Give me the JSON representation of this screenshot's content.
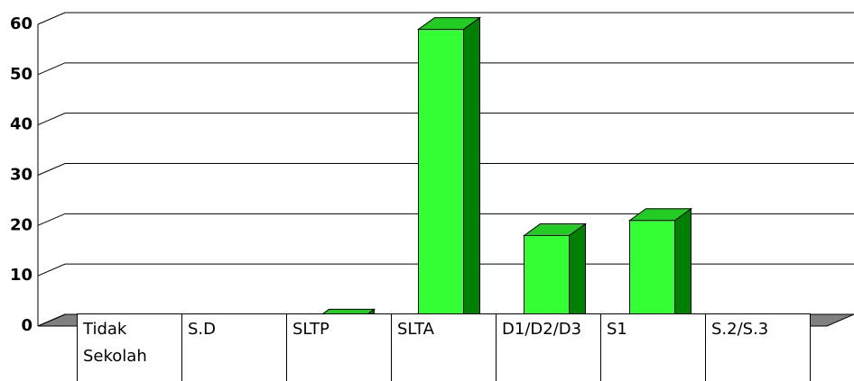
{
  "chart_data": {
    "type": "bar3d",
    "categories": [
      "Tidak Sekolah",
      "S.D",
      "SLTP",
      "SLTA",
      "D1/D2/D3",
      "S1",
      "S.2/S.3"
    ],
    "values": [
      0,
      0,
      1,
      59,
      18,
      21,
      0
    ],
    "color": "#33ff33",
    "ylim": [
      0,
      60
    ],
    "yticks": [
      0,
      10,
      20,
      30,
      40,
      50,
      60
    ],
    "grid": true
  }
}
